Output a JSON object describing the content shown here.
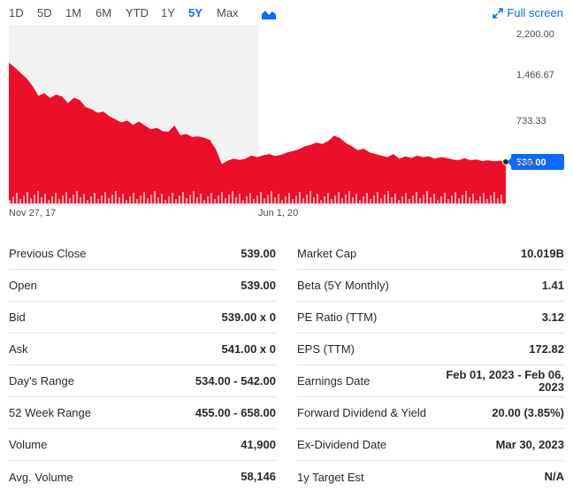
{
  "toolbar": {
    "ranges": [
      "1D",
      "5D",
      "1M",
      "6M",
      "YTD",
      "1Y",
      "5Y",
      "Max"
    ],
    "active_range": "5Y",
    "chart_type_icon": "mountain-chart-icon",
    "fullscreen_label": "Full screen",
    "fullscreen_icon": "expand-arrows-icon"
  },
  "chart": {
    "y_ticks": [
      "2,200.00",
      "1,466.67",
      "733.33",
      "0.00"
    ],
    "x_ticks": [
      "Nov 27, 17",
      "Jun 1, 20"
    ],
    "current_price_label": "539.00",
    "colors": {
      "area": "#eb0f29",
      "price_tag": "#0f69ff",
      "prior_shade": "#f2f2f2"
    }
  },
  "chart_data": {
    "type": "area",
    "ylim": [
      0,
      2200
    ],
    "y_ticks": [
      0,
      733.33,
      1466.67,
      2200
    ],
    "x_ticks": [
      "Nov 27, 17",
      "Jun 1, 20"
    ],
    "current": 539.0,
    "series": [
      {
        "values": [
          1825,
          1760,
          1690,
          1620,
          1520,
          1395,
          1430,
          1365,
          1410,
          1385,
          1300,
          1370,
          1340,
          1245,
          1220,
          1175,
          1190,
          1130,
          1090,
          1050,
          1075,
          1020,
          1060,
          1010,
          960,
          980,
          935,
          930,
          1010,
          885,
          900,
          860,
          870,
          850,
          820,
          700,
          510,
          555,
          580,
          565,
          580,
          620,
          600,
          625,
          640,
          615,
          630,
          660,
          680,
          700,
          740,
          760,
          790,
          770,
          810,
          880,
          845,
          780,
          740,
          690,
          710,
          660,
          640,
          620,
          600,
          640,
          580,
          610,
          590,
          620,
          600,
          610,
          580,
          600,
          590,
          570,
          560,
          585,
          560,
          570,
          550,
          560,
          545,
          555,
          539
        ]
      }
    ]
  },
  "stats": {
    "left": [
      {
        "label": "Previous Close",
        "value": "539.00"
      },
      {
        "label": "Open",
        "value": "539.00"
      },
      {
        "label": "Bid",
        "value": "539.00 x 0"
      },
      {
        "label": "Ask",
        "value": "541.00 x 0"
      },
      {
        "label": "Day's Range",
        "value": "534.00 - 542.00"
      },
      {
        "label": "52 Week Range",
        "value": "455.00 - 658.00"
      },
      {
        "label": "Volume",
        "value": "41,900"
      },
      {
        "label": "Avg. Volume",
        "value": "58,146"
      }
    ],
    "right": [
      {
        "label": "Market Cap",
        "value": "10.019B"
      },
      {
        "label": "Beta (5Y Monthly)",
        "value": "1.41"
      },
      {
        "label": "PE Ratio (TTM)",
        "value": "3.12"
      },
      {
        "label": "EPS (TTM)",
        "value": "172.82"
      },
      {
        "label": "Earnings Date",
        "value": "Feb 01, 2023 - Feb 06, 2023"
      },
      {
        "label": "Forward Dividend & Yield",
        "value": "20.00 (3.85%)"
      },
      {
        "label": "Ex-Dividend Date",
        "value": "Mar 30, 2023"
      },
      {
        "label": "1y Target Est",
        "value": "N/A"
      }
    ]
  }
}
